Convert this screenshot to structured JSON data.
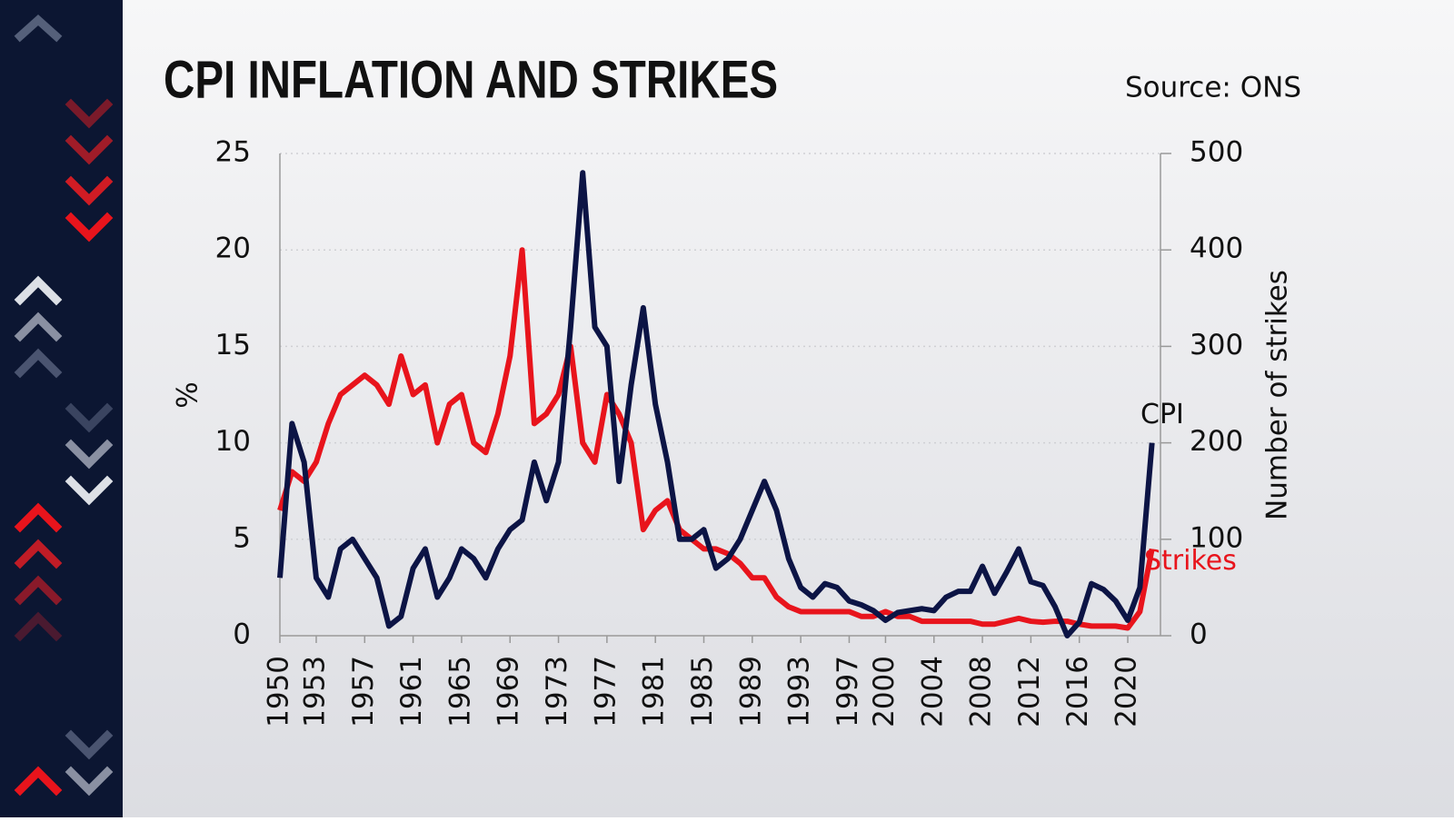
{
  "chart_data": {
    "type": "line",
    "title": "CPI INFLATION AND STRIKES",
    "source": "Source: ONS",
    "y_label": "%",
    "y2_label": "Number of strikes",
    "x": [
      1950,
      1951,
      1952,
      1953,
      1954,
      1955,
      1956,
      1957,
      1958,
      1959,
      1960,
      1961,
      1962,
      1963,
      1964,
      1965,
      1966,
      1967,
      1968,
      1969,
      1970,
      1971,
      1972,
      1973,
      1974,
      1975,
      1976,
      1977,
      1978,
      1979,
      1980,
      1981,
      1982,
      1983,
      1984,
      1985,
      1986,
      1987,
      1988,
      1989,
      1990,
      1991,
      1992,
      1993,
      1994,
      1995,
      1996,
      1997,
      1998,
      1999,
      2000,
      2001,
      2002,
      2003,
      2004,
      2005,
      2006,
      2007,
      2008,
      2009,
      2010,
      2011,
      2012,
      2013,
      2014,
      2015,
      2016,
      2017,
      2018,
      2019,
      2020,
      2021,
      2022
    ],
    "series": [
      {
        "name": "CPI",
        "color": "#0c1445",
        "axis": "y",
        "values": [
          3,
          11,
          9,
          3,
          2,
          4.5,
          5,
          4,
          3,
          0.5,
          1,
          3.5,
          4.5,
          2,
          3,
          4.5,
          4,
          3,
          4.5,
          5.5,
          6,
          9,
          7,
          9,
          16,
          24,
          16,
          15,
          8,
          13,
          17,
          12,
          9,
          5,
          5,
          5.5,
          3.5,
          4,
          5,
          6.5,
          8,
          6.5,
          4,
          2.5,
          2,
          2.7,
          2.5,
          1.8,
          1.6,
          1.3,
          0.8,
          1.2,
          1.3,
          1.4,
          1.3,
          2,
          2.3,
          2.3,
          3.6,
          2.2,
          3.3,
          4.5,
          2.8,
          2.6,
          1.5,
          0,
          0.7,
          2.7,
          2.4,
          1.8,
          0.8,
          2.5,
          10
        ]
      },
      {
        "name": "Strikes",
        "color": "#e8141c",
        "axis": "y2",
        "values": [
          130,
          170,
          160,
          180,
          220,
          250,
          260,
          270,
          260,
          240,
          290,
          250,
          260,
          200,
          240,
          250,
          200,
          190,
          230,
          290,
          400,
          220,
          230,
          250,
          300,
          200,
          180,
          250,
          230,
          200,
          110,
          130,
          140,
          110,
          100,
          90,
          90,
          85,
          75,
          60,
          60,
          40,
          30,
          25,
          25,
          25,
          25,
          25,
          20,
          20,
          25,
          20,
          20,
          15,
          15,
          15,
          15,
          15,
          12,
          12,
          15,
          18,
          15,
          14,
          15,
          15,
          12,
          10,
          10,
          10,
          8,
          25,
          90
        ]
      }
    ],
    "xlim": [
      1950,
      2022.7
    ],
    "xticks": [
      1950,
      1953,
      1957,
      1961,
      1965,
      1969,
      1973,
      1977,
      1981,
      1985,
      1989,
      1993,
      1997,
      2000,
      2004,
      2008,
      2012,
      2016,
      2020
    ],
    "ylim": [
      0,
      25
    ],
    "yticks": [
      0,
      5,
      10,
      15,
      20,
      25
    ],
    "y2lim": [
      0,
      500
    ],
    "y2ticks": [
      0,
      100,
      200,
      300,
      400,
      500
    ],
    "grid": true
  }
}
